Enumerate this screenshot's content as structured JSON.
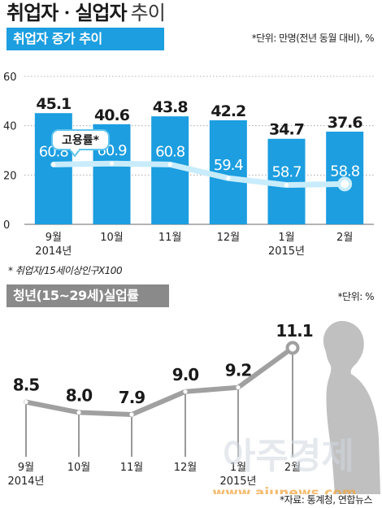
{
  "page": {
    "title_bold": "취업자ㆍ실업자",
    "title_light": "추이",
    "note": "* 취업자/15세이상인구X100",
    "source": "*자료: 통계청, 연합뉴스",
    "watermark_text": "아주경제",
    "watermark_url": "www.ajunews.com"
  },
  "colors": {
    "bar": "#1c9ee0",
    "header_blue": "#1c9ee0",
    "header_gray": "#8a8a8a",
    "rate_line": "#c8ecfb",
    "youth_line": "#a0a0a0",
    "silhouette": "#b0b0b0"
  },
  "chart_data": [
    {
      "type": "bar",
      "title": "취업자 증가 추이",
      "unit_note": "*단위: 만명(전년 동월 대비), %",
      "categories": [
        "9월",
        "10월",
        "11월",
        "12월",
        "1월",
        "2월"
      ],
      "year_labels": [
        "2014년",
        "",
        "",
        "",
        "2015년",
        ""
      ],
      "values": [
        45.1,
        40.6,
        43.8,
        42.2,
        34.7,
        37.6
      ],
      "value_labels": [
        "45.1",
        "40.6",
        "43.8",
        "42.2",
        "34.7",
        "37.6"
      ],
      "ylim": [
        0,
        60
      ],
      "yticks": [
        0,
        20,
        40,
        60
      ],
      "ytick_labels": [
        "0",
        "20",
        "40",
        "60"
      ],
      "grid": true,
      "overlay_series": {
        "type": "line",
        "name": "고용률*",
        "values": [
          60.8,
          60.9,
          60.8,
          59.4,
          58.7,
          58.8
        ],
        "value_labels": [
          "60.8",
          "60.9",
          "60.8",
          "59.4",
          "58.7",
          "58.8"
        ]
      }
    },
    {
      "type": "line",
      "title": "청년(15~29세)실업률",
      "unit_note": "*단위: %",
      "categories": [
        "9월",
        "10월",
        "11월",
        "12월",
        "1월",
        "2월"
      ],
      "year_labels": [
        "2014년",
        "",
        "",
        "",
        "2015년",
        ""
      ],
      "values": [
        8.5,
        8.0,
        7.9,
        9.0,
        9.2,
        11.1
      ],
      "value_labels": [
        "8.5",
        "8.0",
        "7.9",
        "9.0",
        "9.2",
        "11.1"
      ]
    }
  ]
}
